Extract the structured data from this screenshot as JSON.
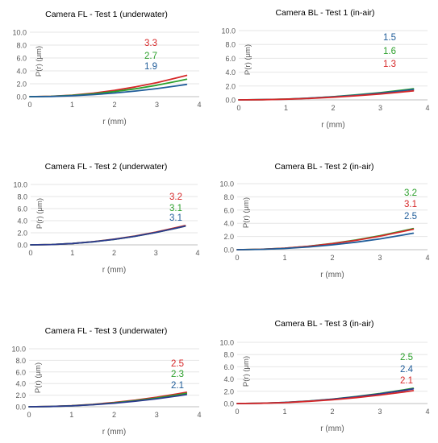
{
  "colors": {
    "red": "#d62728",
    "green": "#2ca02c",
    "blue": "#1f5c99",
    "navy": "#2b3a8f",
    "axis": "#bfbfbf",
    "grid": "#e6e6e6",
    "text": "#000000",
    "tick": "#595959"
  },
  "chart_data": [
    {
      "type": "line",
      "title": "Camera FL - Test 1 (underwater)",
      "xlabel": "r (mm)",
      "ylabel": "P(r) (μm)",
      "xlim": [
        0,
        4
      ],
      "ylim": [
        0,
        10
      ],
      "xticks": [
        "0",
        "1",
        "2",
        "3",
        "4"
      ],
      "yticks": [
        "0.0",
        "2.0",
        "4.0",
        "6.0",
        "8.0",
        "10.0"
      ],
      "grid": true,
      "series": [
        {
          "color": "#d62728",
          "x": [
            0,
            0.5,
            1,
            1.5,
            2,
            2.5,
            3,
            3.5,
            3.7
          ],
          "y": [
            0,
            0.06,
            0.24,
            0.55,
            0.97,
            1.52,
            2.18,
            2.97,
            3.3
          ]
        },
        {
          "color": "#2ca02c",
          "x": [
            0,
            0.5,
            1,
            1.5,
            2,
            2.5,
            3,
            3.5,
            3.7
          ],
          "y": [
            0,
            0.05,
            0.2,
            0.44,
            0.79,
            1.23,
            1.78,
            2.42,
            2.7
          ]
        },
        {
          "color": "#1f5c99",
          "x": [
            0,
            0.5,
            1,
            1.5,
            2,
            2.5,
            3,
            3.5,
            3.7
          ],
          "y": [
            0,
            0.03,
            0.14,
            0.31,
            0.56,
            0.87,
            1.25,
            1.7,
            1.9
          ]
        }
      ],
      "annotations": [
        {
          "text": "3.3",
          "color": "#d62728"
        },
        {
          "text": "2.7",
          "color": "#2ca02c"
        },
        {
          "text": "1.9",
          "color": "#1f5c99"
        }
      ]
    },
    {
      "type": "line",
      "title": "Camera BL - Test 1 (in-air)",
      "xlabel": "r (mm)",
      "ylabel": "P(r) (μm)",
      "xlim": [
        0,
        4
      ],
      "ylim": [
        0,
        10
      ],
      "xticks": [
        "0",
        "1",
        "2",
        "3",
        "4"
      ],
      "yticks": [
        "0.0",
        "2.0",
        "4.0",
        "6.0",
        "8.0",
        "10.0"
      ],
      "grid": true,
      "series": [
        {
          "color": "#2ca02c",
          "x": [
            0,
            0.5,
            1,
            1.5,
            2,
            2.5,
            3,
            3.5,
            3.7
          ],
          "y": [
            0,
            0.03,
            0.12,
            0.26,
            0.47,
            0.73,
            1.05,
            1.43,
            1.6
          ]
        },
        {
          "color": "#1f5c99",
          "x": [
            0,
            0.5,
            1,
            1.5,
            2,
            2.5,
            3,
            3.5,
            3.7
          ],
          "y": [
            0,
            0.03,
            0.11,
            0.25,
            0.44,
            0.68,
            0.99,
            1.34,
            1.5
          ]
        },
        {
          "color": "#d62728",
          "x": [
            0,
            0.5,
            1,
            1.5,
            2,
            2.5,
            3,
            3.5,
            3.7
          ],
          "y": [
            0,
            0.02,
            0.09,
            0.21,
            0.38,
            0.59,
            0.85,
            1.16,
            1.3
          ]
        }
      ],
      "annotations": [
        {
          "text": "1.5",
          "color": "#1f5c99"
        },
        {
          "text": "1.6",
          "color": "#2ca02c"
        },
        {
          "text": "1.3",
          "color": "#d62728"
        }
      ]
    },
    {
      "type": "line",
      "title": "Camera FL - Test 2 (underwater)",
      "xlabel": "r (mm)",
      "ylabel": "P(r) (μm)",
      "xlim": [
        0,
        4
      ],
      "ylim": [
        0,
        10
      ],
      "xticks": [
        "0",
        "1",
        "2",
        "3",
        "4"
      ],
      "yticks": [
        "0.0",
        "2.0",
        "4.0",
        "6.0",
        "8.0",
        "10.0"
      ],
      "grid": true,
      "series": [
        {
          "color": "#d62728",
          "x": [
            0,
            0.5,
            1,
            1.5,
            2,
            2.5,
            3,
            3.5,
            3.7
          ],
          "y": [
            0,
            0.06,
            0.23,
            0.53,
            0.94,
            1.47,
            2.12,
            2.88,
            3.2
          ]
        },
        {
          "color": "#2ca02c",
          "x": [
            0,
            0.5,
            1,
            1.5,
            2,
            2.5,
            3,
            3.5,
            3.7
          ],
          "y": [
            0,
            0.06,
            0.23,
            0.51,
            0.91,
            1.42,
            2.05,
            2.79,
            3.1
          ]
        },
        {
          "color": "#2b3a8f",
          "x": [
            0,
            0.5,
            1,
            1.5,
            2,
            2.5,
            3,
            3.5,
            3.7
          ],
          "y": [
            0,
            0.06,
            0.23,
            0.51,
            0.91,
            1.42,
            2.05,
            2.79,
            3.1
          ]
        }
      ],
      "annotations": [
        {
          "text": "3.2",
          "color": "#d62728"
        },
        {
          "text": "3.1",
          "color": "#2ca02c"
        },
        {
          "text": "3.1",
          "color": "#1f5c99"
        }
      ]
    },
    {
      "type": "line",
      "title": "Camera BL - Test 2 (in-air)",
      "xlabel": "r (mm)",
      "ylabel": "P(r) (μm)",
      "xlim": [
        0,
        4
      ],
      "ylim": [
        0,
        10
      ],
      "xticks": [
        "0",
        "1",
        "2",
        "3",
        "4"
      ],
      "yticks": [
        "0.0",
        "2.0",
        "4.0",
        "6.0",
        "8.0",
        "10.0"
      ],
      "grid": true,
      "series": [
        {
          "color": "#2ca02c",
          "x": [
            0,
            0.5,
            1,
            1.5,
            2,
            2.5,
            3,
            3.5,
            3.7
          ],
          "y": [
            0,
            0.06,
            0.23,
            0.53,
            0.94,
            1.47,
            2.12,
            2.88,
            3.2
          ]
        },
        {
          "color": "#d62728",
          "x": [
            0,
            0.5,
            1,
            1.5,
            2,
            2.5,
            3,
            3.5,
            3.7
          ],
          "y": [
            0,
            0.06,
            0.23,
            0.51,
            0.91,
            1.42,
            2.05,
            2.79,
            3.1
          ]
        },
        {
          "color": "#1f5c99",
          "x": [
            0,
            0.5,
            1,
            1.5,
            2,
            2.5,
            3,
            3.5,
            3.7
          ],
          "y": [
            0,
            0.05,
            0.18,
            0.41,
            0.73,
            1.14,
            1.64,
            2.24,
            2.5
          ]
        }
      ],
      "annotations": [
        {
          "text": "3.2",
          "color": "#2ca02c"
        },
        {
          "text": "3.1",
          "color": "#d62728"
        },
        {
          "text": "2.5",
          "color": "#1f5c99"
        }
      ]
    },
    {
      "type": "line",
      "title": "Camera FL - Test 3 (underwater)",
      "xlabel": "r (mm)",
      "ylabel": "P(r) (μm)",
      "xlim": [
        0,
        4
      ],
      "ylim": [
        0,
        10
      ],
      "xticks": [
        "0",
        "1",
        "2",
        "3",
        "4"
      ],
      "yticks": [
        "0.0",
        "2.0",
        "4.0",
        "6.0",
        "8.0",
        "10.0"
      ],
      "grid": true,
      "series": [
        {
          "color": "#d62728",
          "x": [
            0,
            0.5,
            1,
            1.5,
            2,
            2.5,
            3,
            3.5,
            3.7
          ],
          "y": [
            0,
            0.05,
            0.18,
            0.41,
            0.73,
            1.14,
            1.64,
            2.24,
            2.5
          ]
        },
        {
          "color": "#2ca02c",
          "x": [
            0,
            0.5,
            1,
            1.5,
            2,
            2.5,
            3,
            3.5,
            3.7
          ],
          "y": [
            0,
            0.04,
            0.17,
            0.38,
            0.67,
            1.05,
            1.51,
            2.06,
            2.3
          ]
        },
        {
          "color": "#2b3a8f",
          "x": [
            0,
            0.5,
            1,
            1.5,
            2,
            2.5,
            3,
            3.5,
            3.7
          ],
          "y": [
            0,
            0.04,
            0.15,
            0.35,
            0.61,
            0.96,
            1.38,
            1.88,
            2.1
          ]
        }
      ],
      "annotations": [
        {
          "text": "2.5",
          "color": "#d62728"
        },
        {
          "text": "2.3",
          "color": "#2ca02c"
        },
        {
          "text": "2.1",
          "color": "#1f5c99"
        }
      ]
    },
    {
      "type": "line",
      "title": "Camera BL - Test 3 (in-air)",
      "xlabel": "r (mm)",
      "ylabel": "P(r) (μm)",
      "xlim": [
        0,
        4
      ],
      "ylim": [
        0,
        10
      ],
      "xticks": [
        "0",
        "1",
        "2",
        "3",
        "4"
      ],
      "yticks": [
        "0.0",
        "2.0",
        "4.0",
        "6.0",
        "8.0",
        "10.0"
      ],
      "grid": true,
      "series": [
        {
          "color": "#2ca02c",
          "x": [
            0,
            0.5,
            1,
            1.5,
            2,
            2.5,
            3,
            3.5,
            3.7
          ],
          "y": [
            0,
            0.05,
            0.18,
            0.41,
            0.73,
            1.14,
            1.64,
            2.24,
            2.5
          ]
        },
        {
          "color": "#2b3a8f",
          "x": [
            0,
            0.5,
            1,
            1.5,
            2,
            2.5,
            3,
            3.5,
            3.7
          ],
          "y": [
            0,
            0.04,
            0.18,
            0.39,
            0.7,
            1.1,
            1.58,
            2.15,
            2.4
          ]
        },
        {
          "color": "#d62728",
          "x": [
            0,
            0.5,
            1,
            1.5,
            2,
            2.5,
            3,
            3.5,
            3.7
          ],
          "y": [
            0,
            0.04,
            0.15,
            0.35,
            0.61,
            0.96,
            1.38,
            1.88,
            2.1
          ]
        }
      ],
      "annotations": [
        {
          "text": "2.5",
          "color": "#2ca02c"
        },
        {
          "text": "2.4",
          "color": "#1f5c99"
        },
        {
          "text": "2.1",
          "color": "#d62728"
        }
      ]
    }
  ]
}
